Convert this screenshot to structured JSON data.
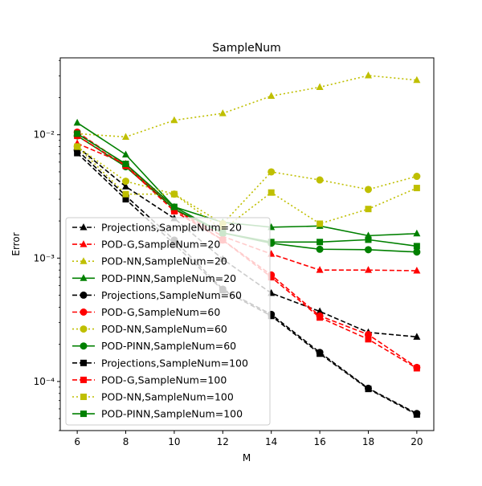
{
  "chart_data": {
    "type": "line",
    "title": "SampleNum",
    "xlabel": "M",
    "ylabel": "Error",
    "x": [
      6,
      8,
      10,
      12,
      14,
      16,
      18,
      20
    ],
    "xlim": [
      5.3,
      20.7
    ],
    "ylim": [
      4e-05,
      0.042
    ],
    "yscale": "log",
    "x_ticks": [
      "6",
      "8",
      "10",
      "12",
      "14",
      "16",
      "18",
      "20"
    ],
    "y_ticks": [
      {
        "value": 0.0001,
        "label": "10⁻⁴"
      },
      {
        "value": 0.001,
        "label": "10⁻³"
      },
      {
        "value": 0.01,
        "label": "10⁻²"
      }
    ],
    "grid": false,
    "legend_position": "lower-left",
    "series": [
      {
        "name": "Projections,SampleNum=20",
        "color": "#000000",
        "linestyle": "dashed",
        "marker": "triangle",
        "values": [
          0.008,
          0.0038,
          0.0021,
          0.00098,
          0.00052,
          0.00037,
          0.00025,
          0.00023
        ]
      },
      {
        "name": "POD-G,SampleNum=20",
        "color": "#ff0000",
        "linestyle": "dashed",
        "marker": "triangle",
        "values": [
          0.0085,
          0.0058,
          0.0025,
          0.0015,
          0.00108,
          0.0008,
          0.0008,
          0.00079
        ]
      },
      {
        "name": "POD-NN,SampleNum=20",
        "color": "#bfbf00",
        "linestyle": "dotted",
        "marker": "triangle",
        "values": [
          0.0102,
          0.0096,
          0.0131,
          0.0149,
          0.0206,
          0.0243,
          0.0302,
          0.0277
        ]
      },
      {
        "name": "POD-PINN,SampleNum=20",
        "color": "#008000",
        "linestyle": "solid",
        "marker": "triangle",
        "values": [
          0.0125,
          0.0069,
          0.0026,
          0.00195,
          0.00178,
          0.00182,
          0.00152,
          0.00158
        ]
      },
      {
        "name": "Projections,SampleNum=60",
        "color": "#000000",
        "linestyle": "dashed",
        "marker": "circle",
        "values": [
          0.0075,
          0.0032,
          0.0014,
          0.00056,
          0.00035,
          0.000172,
          8.8e-05,
          5.5e-05
        ]
      },
      {
        "name": "POD-G,SampleNum=60",
        "color": "#ff0000",
        "linestyle": "dashed",
        "marker": "circle",
        "values": [
          0.0105,
          0.0057,
          0.0025,
          0.0014,
          0.00073,
          0.00034,
          0.00024,
          0.00013
        ]
      },
      {
        "name": "POD-NN,SampleNum=60",
        "color": "#bfbf00",
        "linestyle": "dotted",
        "marker": "circle",
        "values": [
          0.008,
          0.0042,
          0.0033,
          0.0019,
          0.005,
          0.0043,
          0.0036,
          0.0046
        ]
      },
      {
        "name": "POD-PINN,SampleNum=60",
        "color": "#008000",
        "linestyle": "solid",
        "marker": "circle",
        "values": [
          0.0098,
          0.0055,
          0.0025,
          0.0016,
          0.00132,
          0.00118,
          0.00117,
          0.00112
        ]
      },
      {
        "name": "Projections,SampleNum=100",
        "color": "#000000",
        "linestyle": "dashed",
        "marker": "square",
        "values": [
          0.0071,
          0.003,
          0.0013,
          0.00055,
          0.00034,
          0.000168,
          8.7e-05,
          5.4e-05
        ]
      },
      {
        "name": "POD-G,SampleNum=100",
        "color": "#ff0000",
        "linestyle": "dashed",
        "marker": "square",
        "values": [
          0.0098,
          0.0056,
          0.0024,
          0.0014,
          0.0007,
          0.00033,
          0.00022,
          0.000128
        ]
      },
      {
        "name": "POD-NN,SampleNum=100",
        "color": "#bfbf00",
        "linestyle": "dotted",
        "marker": "square",
        "values": [
          0.008,
          0.0033,
          0.0033,
          0.0017,
          0.0034,
          0.0019,
          0.0025,
          0.0037
        ]
      },
      {
        "name": "POD-PINN,SampleNum=100",
        "color": "#008000",
        "linestyle": "solid",
        "marker": "square",
        "values": [
          0.0102,
          0.0058,
          0.0026,
          0.0016,
          0.00135,
          0.00135,
          0.00141,
          0.00125
        ]
      }
    ]
  }
}
